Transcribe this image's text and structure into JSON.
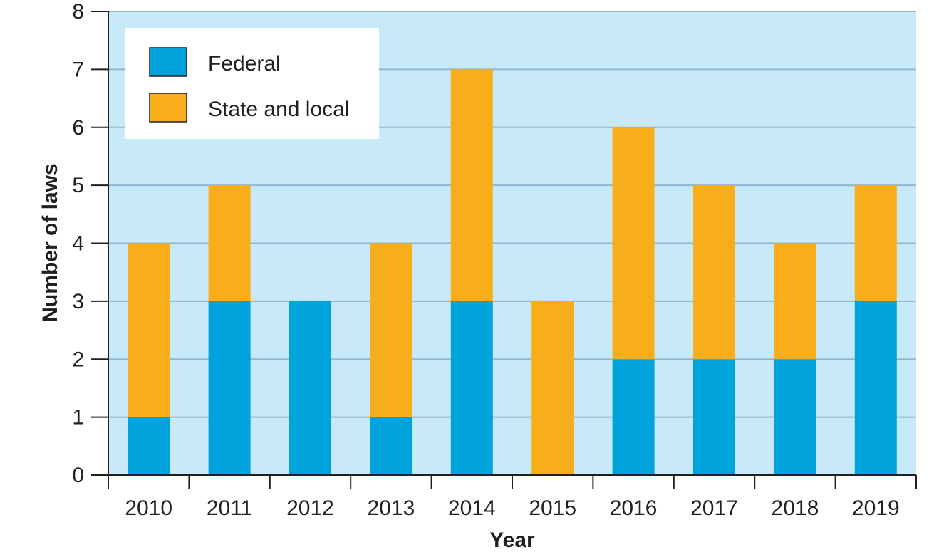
{
  "chart_data": {
    "type": "bar",
    "stacked": true,
    "title": "",
    "xlabel": "Year",
    "ylabel": "Number of laws",
    "categories": [
      "2010",
      "2011",
      "2012",
      "2013",
      "2014",
      "2015",
      "2016",
      "2017",
      "2018",
      "2019"
    ],
    "series": [
      {
        "name": "Federal",
        "color": "#00a3dc",
        "values": [
          1,
          3,
          3,
          1,
          3,
          0,
          2,
          2,
          2,
          3
        ]
      },
      {
        "name": "State and local",
        "color": "#f8ae1a",
        "values": [
          3,
          2,
          0,
          3,
          4,
          3,
          4,
          3,
          2,
          2
        ]
      }
    ],
    "ylim": [
      0,
      8
    ],
    "yticks": [
      "0",
      "1",
      "2",
      "3",
      "4",
      "5",
      "6",
      "7",
      "8"
    ],
    "grid": true,
    "legend_position": "top-left",
    "plot_background": "#c8e9f8",
    "grid_color": "#8fb8cc"
  }
}
